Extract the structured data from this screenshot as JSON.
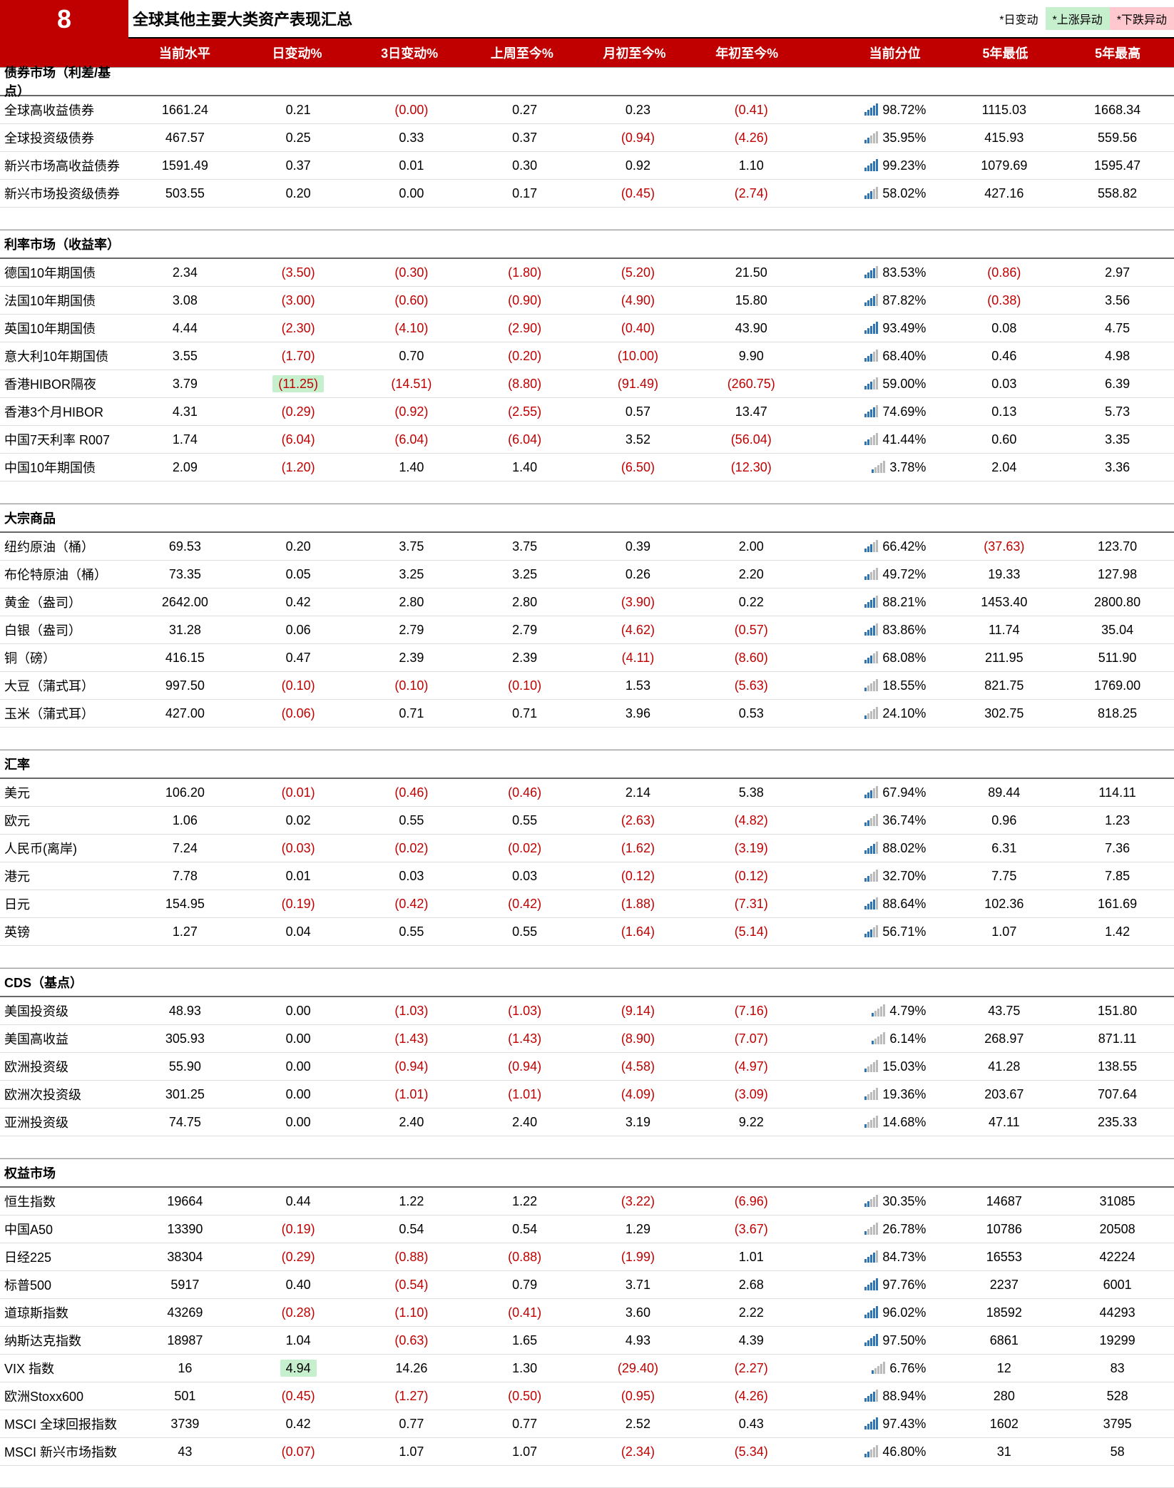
{
  "header": {
    "number": "8",
    "title": "全球其他主要大类资产表现汇总"
  },
  "legend": {
    "daily": "*日变动",
    "up": "*上涨异动",
    "down": "*下跌异动"
  },
  "columns": [
    "当前水平",
    "日变动%",
    "3日变动%",
    "上周至今%",
    "月初至今%",
    "年初至今%",
    "当前分位",
    "5年最低",
    "5年最高"
  ],
  "colors": {
    "brand": "#c00000",
    "up_bg": "#c6efce",
    "down_bg": "#ffc7ce",
    "bar_on": "#2e75b6",
    "bar_off": "#bbbbbb"
  },
  "sections": [
    {
      "name": "债券市场（利差/基点）",
      "rows": [
        {
          "n": "全球高收益债券",
          "v": [
            "1661.24",
            "0.21",
            "(0.00)",
            "0.27",
            "0.23",
            "(0.41)",
            "98.72%",
            "1115.03",
            "1668.34"
          ],
          "neg": [
            0,
            0,
            1,
            0,
            0,
            1,
            0,
            0,
            0
          ],
          "p": 98.72
        },
        {
          "n": "全球投资级债券",
          "v": [
            "467.57",
            "0.25",
            "0.33",
            "0.37",
            "(0.94)",
            "(4.26)",
            "35.95%",
            "415.93",
            "559.56"
          ],
          "neg": [
            0,
            0,
            0,
            0,
            1,
            1,
            0,
            0,
            0
          ],
          "p": 35.95
        },
        {
          "n": "新兴市场高收益债券",
          "v": [
            "1591.49",
            "0.37",
            "0.01",
            "0.30",
            "0.92",
            "1.10",
            "99.23%",
            "1079.69",
            "1595.47"
          ],
          "neg": [
            0,
            0,
            0,
            0,
            0,
            0,
            0,
            0,
            0
          ],
          "p": 99.23
        },
        {
          "n": "新兴市场投资级债券",
          "v": [
            "503.55",
            "0.20",
            "0.00",
            "0.17",
            "(0.45)",
            "(2.74)",
            "58.02%",
            "427.16",
            "558.82"
          ],
          "neg": [
            0,
            0,
            0,
            0,
            1,
            1,
            0,
            0,
            0
          ],
          "p": 58.02
        }
      ]
    },
    {
      "name": "利率市场（收益率）",
      "rows": [
        {
          "n": "德国10年期国债",
          "v": [
            "2.34",
            "(3.50)",
            "(0.30)",
            "(1.80)",
            "(5.20)",
            "21.50",
            "83.53%",
            "(0.86)",
            "2.97"
          ],
          "neg": [
            0,
            1,
            1,
            1,
            1,
            0,
            0,
            1,
            0
          ],
          "p": 83.53
        },
        {
          "n": "法国10年期国债",
          "v": [
            "3.08",
            "(3.00)",
            "(0.60)",
            "(0.90)",
            "(4.90)",
            "15.80",
            "87.82%",
            "(0.38)",
            "3.56"
          ],
          "neg": [
            0,
            1,
            1,
            1,
            1,
            0,
            0,
            1,
            0
          ],
          "p": 87.82
        },
        {
          "n": "英国10年期国债",
          "v": [
            "4.44",
            "(2.30)",
            "(4.10)",
            "(2.90)",
            "(0.40)",
            "43.90",
            "93.49%",
            "0.08",
            "4.75"
          ],
          "neg": [
            0,
            1,
            1,
            1,
            1,
            0,
            0,
            0,
            0
          ],
          "p": 93.49
        },
        {
          "n": "意大利10年期国债",
          "v": [
            "3.55",
            "(1.70)",
            "0.70",
            "(0.20)",
            "(10.00)",
            "9.90",
            "68.40%",
            "0.46",
            "4.98"
          ],
          "neg": [
            0,
            1,
            0,
            1,
            1,
            0,
            0,
            0,
            0
          ],
          "p": 68.4
        },
        {
          "n": "香港HIBOR隔夜",
          "v": [
            "3.79",
            "(11.25)",
            "(14.51)",
            "(8.80)",
            "(91.49)",
            "(260.75)",
            "59.00%",
            "0.03",
            "6.39"
          ],
          "neg": [
            0,
            1,
            1,
            1,
            1,
            1,
            0,
            0,
            0
          ],
          "hl": [
            0,
            1,
            0,
            0,
            0,
            0,
            0,
            0,
            0
          ],
          "p": 59.0
        },
        {
          "n": "香港3个月HIBOR",
          "v": [
            "4.31",
            "(0.29)",
            "(0.92)",
            "(2.55)",
            "0.57",
            "13.47",
            "74.69%",
            "0.13",
            "5.73"
          ],
          "neg": [
            0,
            1,
            1,
            1,
            0,
            0,
            0,
            0,
            0
          ],
          "p": 74.69
        },
        {
          "n": "中国7天利率 R007",
          "v": [
            "1.74",
            "(6.04)",
            "(6.04)",
            "(6.04)",
            "3.52",
            "(56.04)",
            "41.44%",
            "0.60",
            "3.35"
          ],
          "neg": [
            0,
            1,
            1,
            1,
            0,
            1,
            0,
            0,
            0
          ],
          "p": 41.44
        },
        {
          "n": "中国10年期国债",
          "v": [
            "2.09",
            "(1.20)",
            "1.40",
            "1.40",
            "(6.50)",
            "(12.30)",
            "3.78%",
            "2.04",
            "3.36"
          ],
          "neg": [
            0,
            1,
            0,
            0,
            1,
            1,
            0,
            0,
            0
          ],
          "p": 3.78
        }
      ]
    },
    {
      "name": "大宗商品",
      "rows": [
        {
          "n": "纽约原油（桶）",
          "v": [
            "69.53",
            "0.20",
            "3.75",
            "3.75",
            "0.39",
            "2.00",
            "66.42%",
            "(37.63)",
            "123.70"
          ],
          "neg": [
            0,
            0,
            0,
            0,
            0,
            0,
            0,
            1,
            0
          ],
          "p": 66.42
        },
        {
          "n": "布伦特原油（桶）",
          "v": [
            "73.35",
            "0.05",
            "3.25",
            "3.25",
            "0.26",
            "2.20",
            "49.72%",
            "19.33",
            "127.98"
          ],
          "neg": [
            0,
            0,
            0,
            0,
            0,
            0,
            0,
            0,
            0
          ],
          "p": 49.72
        },
        {
          "n": "黄金（盎司）",
          "v": [
            "2642.00",
            "0.42",
            "2.80",
            "2.80",
            "(3.90)",
            "0.22",
            "88.21%",
            "1453.40",
            "2800.80"
          ],
          "neg": [
            0,
            0,
            0,
            0,
            1,
            0,
            0,
            0,
            0
          ],
          "p": 88.21
        },
        {
          "n": "白银（盎司）",
          "v": [
            "31.28",
            "0.06",
            "2.79",
            "2.79",
            "(4.62)",
            "(0.57)",
            "83.86%",
            "11.74",
            "35.04"
          ],
          "neg": [
            0,
            0,
            0,
            0,
            1,
            1,
            0,
            0,
            0
          ],
          "p": 83.86
        },
        {
          "n": "铜（磅）",
          "v": [
            "416.15",
            "0.47",
            "2.39",
            "2.39",
            "(4.11)",
            "(8.60)",
            "68.08%",
            "211.95",
            "511.90"
          ],
          "neg": [
            0,
            0,
            0,
            0,
            1,
            1,
            0,
            0,
            0
          ],
          "p": 68.08
        },
        {
          "n": "大豆（蒲式耳）",
          "v": [
            "997.50",
            "(0.10)",
            "(0.10)",
            "(0.10)",
            "1.53",
            "(5.63)",
            "18.55%",
            "821.75",
            "1769.00"
          ],
          "neg": [
            0,
            1,
            1,
            1,
            0,
            1,
            0,
            0,
            0
          ],
          "p": 18.55
        },
        {
          "n": "玉米（蒲式耳）",
          "v": [
            "427.00",
            "(0.06)",
            "0.71",
            "0.71",
            "3.96",
            "0.53",
            "24.10%",
            "302.75",
            "818.25"
          ],
          "neg": [
            0,
            1,
            0,
            0,
            0,
            0,
            0,
            0,
            0
          ],
          "p": 24.1
        }
      ]
    },
    {
      "name": "汇率",
      "rows": [
        {
          "n": "美元",
          "v": [
            "106.20",
            "(0.01)",
            "(0.46)",
            "(0.46)",
            "2.14",
            "5.38",
            "67.94%",
            "89.44",
            "114.11"
          ],
          "neg": [
            0,
            1,
            1,
            1,
            0,
            0,
            0,
            0,
            0
          ],
          "p": 67.94
        },
        {
          "n": "欧元",
          "v": [
            "1.06",
            "0.02",
            "0.55",
            "0.55",
            "(2.63)",
            "(4.82)",
            "36.74%",
            "0.96",
            "1.23"
          ],
          "neg": [
            0,
            0,
            0,
            0,
            1,
            1,
            0,
            0,
            0
          ],
          "p": 36.74
        },
        {
          "n": "人民币(离岸)",
          "v": [
            "7.24",
            "(0.03)",
            "(0.02)",
            "(0.02)",
            "(1.62)",
            "(3.19)",
            "88.02%",
            "6.31",
            "7.36"
          ],
          "neg": [
            0,
            1,
            1,
            1,
            1,
            1,
            0,
            0,
            0
          ],
          "p": 88.02
        },
        {
          "n": "港元",
          "v": [
            "7.78",
            "0.01",
            "0.03",
            "0.03",
            "(0.12)",
            "(0.12)",
            "32.70%",
            "7.75",
            "7.85"
          ],
          "neg": [
            0,
            0,
            0,
            0,
            1,
            1,
            0,
            0,
            0
          ],
          "p": 32.7
        },
        {
          "n": "日元",
          "v": [
            "154.95",
            "(0.19)",
            "(0.42)",
            "(0.42)",
            "(1.88)",
            "(7.31)",
            "88.64%",
            "102.36",
            "161.69"
          ],
          "neg": [
            0,
            1,
            1,
            1,
            1,
            1,
            0,
            0,
            0
          ],
          "p": 88.64
        },
        {
          "n": "英镑",
          "v": [
            "1.27",
            "0.04",
            "0.55",
            "0.55",
            "(1.64)",
            "(5.14)",
            "56.71%",
            "1.07",
            "1.42"
          ],
          "neg": [
            0,
            0,
            0,
            0,
            1,
            1,
            0,
            0,
            0
          ],
          "p": 56.71
        }
      ]
    },
    {
      "name": "CDS（基点）",
      "rows": [
        {
          "n": "美国投资级",
          "v": [
            "48.93",
            "0.00",
            "(1.03)",
            "(1.03)",
            "(9.14)",
            "(7.16)",
            "4.79%",
            "43.75",
            "151.80"
          ],
          "neg": [
            0,
            0,
            1,
            1,
            1,
            1,
            0,
            0,
            0
          ],
          "p": 4.79
        },
        {
          "n": "美国高收益",
          "v": [
            "305.93",
            "0.00",
            "(1.43)",
            "(1.43)",
            "(8.90)",
            "(7.07)",
            "6.14%",
            "268.97",
            "871.11"
          ],
          "neg": [
            0,
            0,
            1,
            1,
            1,
            1,
            0,
            0,
            0
          ],
          "p": 6.14
        },
        {
          "n": "欧洲投资级",
          "v": [
            "55.90",
            "0.00",
            "(0.94)",
            "(0.94)",
            "(4.58)",
            "(4.97)",
            "15.03%",
            "41.28",
            "138.55"
          ],
          "neg": [
            0,
            0,
            1,
            1,
            1,
            1,
            0,
            0,
            0
          ],
          "p": 15.03
        },
        {
          "n": "欧洲次投资级",
          "v": [
            "301.25",
            "0.00",
            "(1.01)",
            "(1.01)",
            "(4.09)",
            "(3.09)",
            "19.36%",
            "203.67",
            "707.64"
          ],
          "neg": [
            0,
            0,
            1,
            1,
            1,
            1,
            0,
            0,
            0
          ],
          "p": 19.36
        },
        {
          "n": "亚洲投资级",
          "v": [
            "74.75",
            "0.00",
            "2.40",
            "2.40",
            "3.19",
            "9.22",
            "14.68%",
            "47.11",
            "235.33"
          ],
          "neg": [
            0,
            0,
            0,
            0,
            0,
            0,
            0,
            0,
            0
          ],
          "p": 14.68
        }
      ]
    },
    {
      "name": "权益市场",
      "rows": [
        {
          "n": "恒生指数",
          "v": [
            "19664",
            "0.44",
            "1.22",
            "1.22",
            "(3.22)",
            "(6.96)",
            "30.35%",
            "14687",
            "31085"
          ],
          "neg": [
            0,
            0,
            0,
            0,
            1,
            1,
            0,
            0,
            0
          ],
          "p": 30.35
        },
        {
          "n": "中国A50",
          "v": [
            "13390",
            "(0.19)",
            "0.54",
            "0.54",
            "1.29",
            "(3.67)",
            "26.78%",
            "10786",
            "20508"
          ],
          "neg": [
            0,
            1,
            0,
            0,
            0,
            1,
            0,
            0,
            0
          ],
          "p": 26.78
        },
        {
          "n": "日经225",
          "v": [
            "38304",
            "(0.29)",
            "(0.88)",
            "(0.88)",
            "(1.99)",
            "1.01",
            "84.73%",
            "16553",
            "42224"
          ],
          "neg": [
            0,
            1,
            1,
            1,
            1,
            0,
            0,
            0,
            0
          ],
          "p": 84.73
        },
        {
          "n": "标普500",
          "v": [
            "5917",
            "0.40",
            "(0.54)",
            "0.79",
            "3.71",
            "2.68",
            "97.76%",
            "2237",
            "6001"
          ],
          "neg": [
            0,
            0,
            1,
            0,
            0,
            0,
            0,
            0,
            0
          ],
          "p": 97.76
        },
        {
          "n": "道琼斯指数",
          "v": [
            "43269",
            "(0.28)",
            "(1.10)",
            "(0.41)",
            "3.60",
            "2.22",
            "96.02%",
            "18592",
            "44293"
          ],
          "neg": [
            0,
            1,
            1,
            1,
            0,
            0,
            0,
            0,
            0
          ],
          "p": 96.02
        },
        {
          "n": "纳斯达克指数",
          "v": [
            "18987",
            "1.04",
            "(0.63)",
            "1.65",
            "4.93",
            "4.39",
            "97.50%",
            "6861",
            "19299"
          ],
          "neg": [
            0,
            0,
            1,
            0,
            0,
            0,
            0,
            0,
            0
          ],
          "p": 97.5
        },
        {
          "n": "VIX 指数",
          "v": [
            "16",
            "4.94",
            "14.26",
            "1.30",
            "(29.40)",
            "(2.27)",
            "6.76%",
            "12",
            "83"
          ],
          "neg": [
            0,
            0,
            0,
            0,
            1,
            1,
            0,
            0,
            0
          ],
          "hl": [
            0,
            1,
            0,
            0,
            0,
            0,
            0,
            0,
            0
          ],
          "p": 6.76
        },
        {
          "n": "欧洲Stoxx600",
          "v": [
            "501",
            "(0.45)",
            "(1.27)",
            "(0.50)",
            "(0.95)",
            "(4.26)",
            "88.94%",
            "280",
            "528"
          ],
          "neg": [
            0,
            1,
            1,
            1,
            1,
            1,
            0,
            0,
            0
          ],
          "p": 88.94
        },
        {
          "n": "MSCI 全球回报指数",
          "v": [
            "3739",
            "0.42",
            "0.77",
            "0.77",
            "2.52",
            "0.43",
            "97.43%",
            "1602",
            "3795"
          ],
          "neg": [
            0,
            0,
            0,
            0,
            0,
            0,
            0,
            0,
            0
          ],
          "p": 97.43
        },
        {
          "n": "MSCI 新兴市场指数",
          "v": [
            "43",
            "(0.07)",
            "1.07",
            "1.07",
            "(2.34)",
            "(5.34)",
            "46.80%",
            "31",
            "58"
          ],
          "neg": [
            0,
            1,
            0,
            0,
            1,
            1,
            0,
            0,
            0
          ],
          "p": 46.8
        }
      ]
    }
  ]
}
